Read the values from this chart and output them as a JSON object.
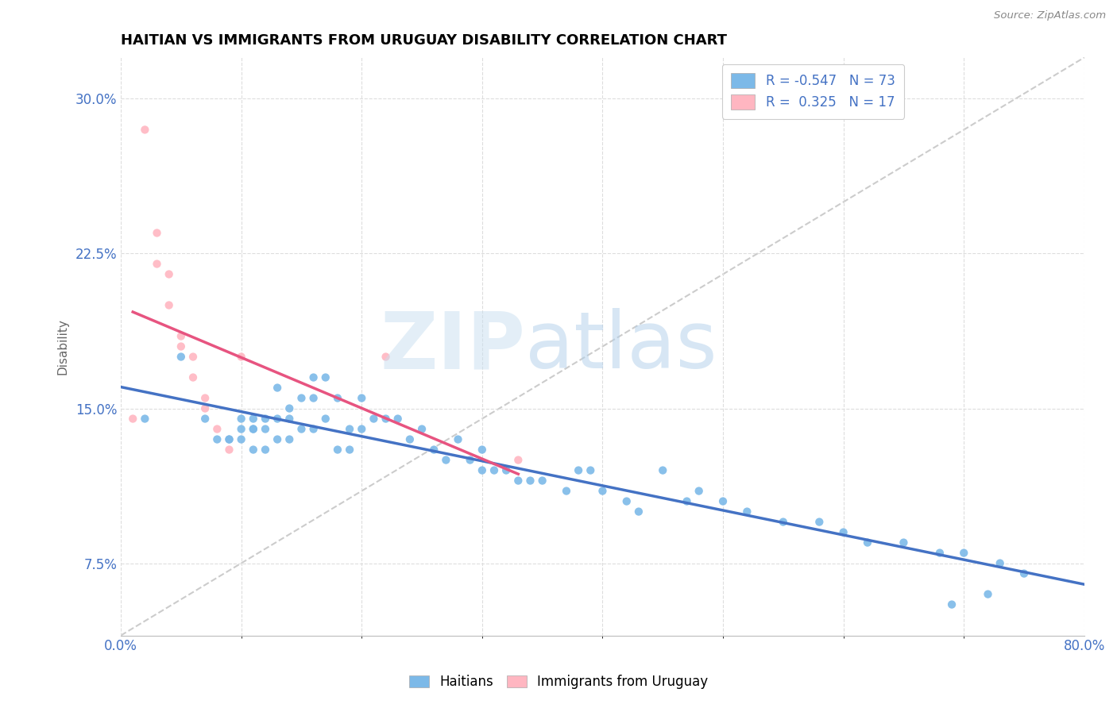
{
  "title": "HAITIAN VS IMMIGRANTS FROM URUGUAY DISABILITY CORRELATION CHART",
  "source": "Source: ZipAtlas.com",
  "ylabel": "Disability",
  "xlim": [
    0.0,
    0.8
  ],
  "ylim": [
    0.04,
    0.32
  ],
  "yticks": [
    0.075,
    0.15,
    0.225,
    0.3
  ],
  "ytick_labels": [
    "7.5%",
    "15.0%",
    "22.5%",
    "30.0%"
  ],
  "color_blue": "#7CB9E8",
  "color_pink": "#FFB6C1",
  "color_blue_line": "#4472C4",
  "color_pink_line": "#E75480",
  "haitians_x": [
    0.02,
    0.05,
    0.07,
    0.08,
    0.09,
    0.09,
    0.1,
    0.1,
    0.1,
    0.11,
    0.11,
    0.11,
    0.11,
    0.12,
    0.12,
    0.12,
    0.13,
    0.13,
    0.13,
    0.14,
    0.14,
    0.14,
    0.15,
    0.15,
    0.16,
    0.16,
    0.16,
    0.17,
    0.17,
    0.18,
    0.18,
    0.19,
    0.19,
    0.2,
    0.2,
    0.21,
    0.22,
    0.23,
    0.24,
    0.25,
    0.26,
    0.27,
    0.28,
    0.29,
    0.3,
    0.3,
    0.31,
    0.32,
    0.33,
    0.34,
    0.35,
    0.37,
    0.38,
    0.39,
    0.4,
    0.42,
    0.43,
    0.45,
    0.47,
    0.48,
    0.5,
    0.52,
    0.55,
    0.58,
    0.6,
    0.62,
    0.65,
    0.68,
    0.7,
    0.73,
    0.75,
    0.69,
    0.72
  ],
  "haitians_y": [
    0.145,
    0.175,
    0.145,
    0.135,
    0.135,
    0.135,
    0.145,
    0.14,
    0.135,
    0.14,
    0.145,
    0.14,
    0.13,
    0.145,
    0.14,
    0.13,
    0.16,
    0.145,
    0.135,
    0.15,
    0.145,
    0.135,
    0.155,
    0.14,
    0.165,
    0.155,
    0.14,
    0.165,
    0.145,
    0.155,
    0.13,
    0.14,
    0.13,
    0.155,
    0.14,
    0.145,
    0.145,
    0.145,
    0.135,
    0.14,
    0.13,
    0.125,
    0.135,
    0.125,
    0.13,
    0.12,
    0.12,
    0.12,
    0.115,
    0.115,
    0.115,
    0.11,
    0.12,
    0.12,
    0.11,
    0.105,
    0.1,
    0.12,
    0.105,
    0.11,
    0.105,
    0.1,
    0.095,
    0.095,
    0.09,
    0.085,
    0.085,
    0.08,
    0.08,
    0.075,
    0.07,
    0.055,
    0.06
  ],
  "uruguay_x": [
    0.01,
    0.02,
    0.03,
    0.03,
    0.04,
    0.04,
    0.05,
    0.05,
    0.06,
    0.06,
    0.07,
    0.07,
    0.08,
    0.09,
    0.1,
    0.22,
    0.33
  ],
  "uruguay_y": [
    0.145,
    0.285,
    0.235,
    0.22,
    0.215,
    0.2,
    0.185,
    0.18,
    0.175,
    0.165,
    0.155,
    0.15,
    0.14,
    0.13,
    0.175,
    0.175,
    0.125
  ],
  "diag_line_x": [
    0.0,
    0.8
  ],
  "diag_line_y": [
    0.04,
    0.32
  ]
}
